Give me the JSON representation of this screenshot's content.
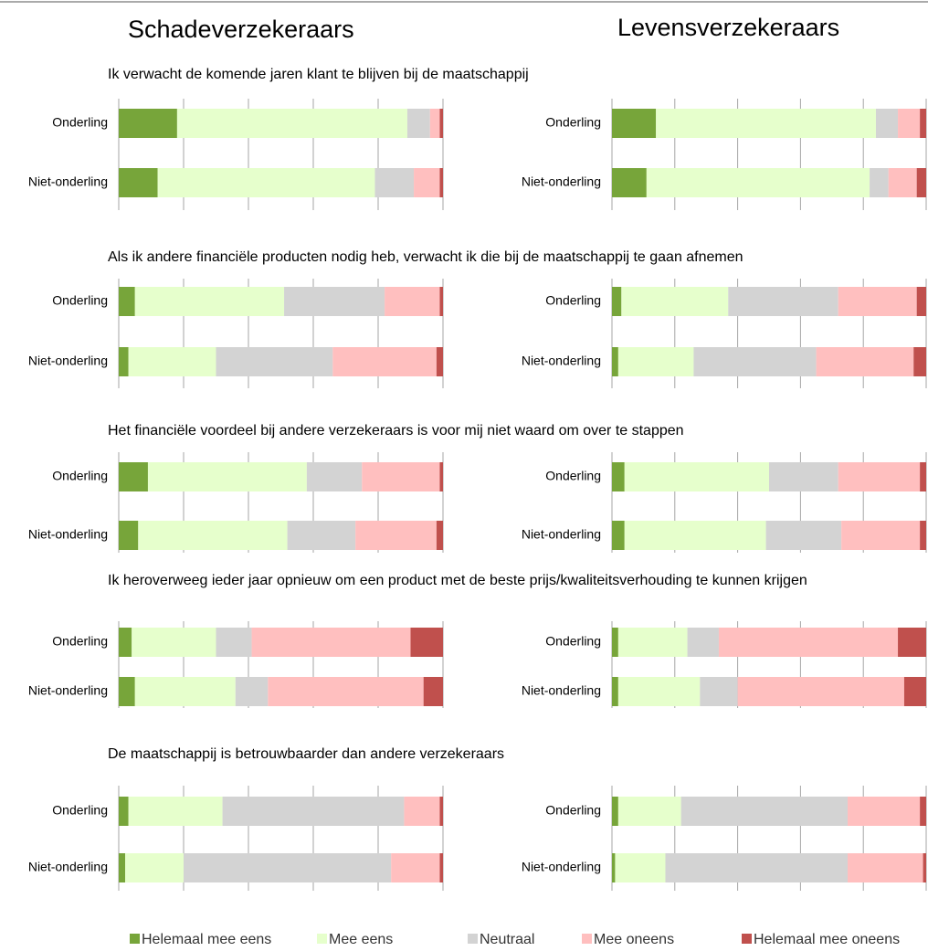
{
  "headers": [
    "Schadeverzekeraars",
    "Levensverzekeraars"
  ],
  "chart_data": {
    "type": "bar",
    "orientation": "horizontal",
    "stacked": true,
    "categories": [
      "Onderling",
      "Niet-onderling"
    ],
    "series": [
      {
        "name": "Helemaal mee eens",
        "color": "#77a53a"
      },
      {
        "name": "Mee eens",
        "color": "#e6ffcc"
      },
      {
        "name": "Neutraal",
        "color": "#d3d3d3"
      },
      {
        "name": "Mee oneens",
        "color": "#ffbfbf"
      },
      {
        "name": "Helemaal mee oneens",
        "color": "#c0504d"
      }
    ],
    "xlim": [
      0,
      100
    ],
    "xticks": [
      0,
      20,
      40,
      60,
      80,
      100
    ],
    "grid": true,
    "questions": [
      {
        "title": "Ik verwacht de komende jaren klant te blijven bij de maatschappij",
        "panels": [
          {
            "values": [
              [
                18,
                71,
                7,
                3,
                1
              ],
              [
                12,
                67,
                12,
                8,
                1
              ]
            ]
          },
          {
            "values": [
              [
                14,
                70,
                7,
                7,
                2
              ],
              [
                11,
                71,
                6,
                9,
                3
              ]
            ]
          }
        ]
      },
      {
        "title": "Als ik andere financiële producten nodig heb, verwacht ik die bij de maatschappij te gaan afnemen",
        "panels": [
          {
            "values": [
              [
                5,
                46,
                31,
                17,
                1
              ],
              [
                3,
                27,
                36,
                32,
                2
              ]
            ]
          },
          {
            "values": [
              [
                3,
                34,
                35,
                25,
                3
              ],
              [
                2,
                24,
                39,
                31,
                4
              ]
            ]
          }
        ]
      },
      {
        "title": "Het financiële voordeel bij andere verzekeraars is voor mij niet waard om over te stappen",
        "panels": [
          {
            "values": [
              [
                9,
                49,
                17,
                24,
                1
              ],
              [
                6,
                46,
                21,
                25,
                2
              ]
            ]
          },
          {
            "values": [
              [
                4,
                46,
                22,
                26,
                2
              ],
              [
                4,
                45,
                24,
                25,
                2
              ]
            ]
          }
        ]
      },
      {
        "title": "Ik heroverweeg ieder jaar opnieuw om een product met de beste prijs/kwaliteitsverhouding te kunnen krijgen",
        "panels": [
          {
            "values": [
              [
                4,
                26,
                11,
                49,
                10
              ],
              [
                5,
                31,
                10,
                48,
                6
              ]
            ]
          },
          {
            "values": [
              [
                2,
                22,
                10,
                57,
                9
              ],
              [
                2,
                26,
                12,
                53,
                7
              ]
            ]
          }
        ]
      },
      {
        "title": "De maatschappij is betrouwbaarder dan andere verzekeraars",
        "panels": [
          {
            "values": [
              [
                3,
                29,
                56,
                11,
                1
              ],
              [
                2,
                18,
                64,
                15,
                1
              ]
            ]
          },
          {
            "values": [
              [
                2,
                20,
                53,
                23,
                2
              ],
              [
                1,
                16,
                58,
                24,
                1
              ]
            ]
          }
        ]
      }
    ]
  }
}
